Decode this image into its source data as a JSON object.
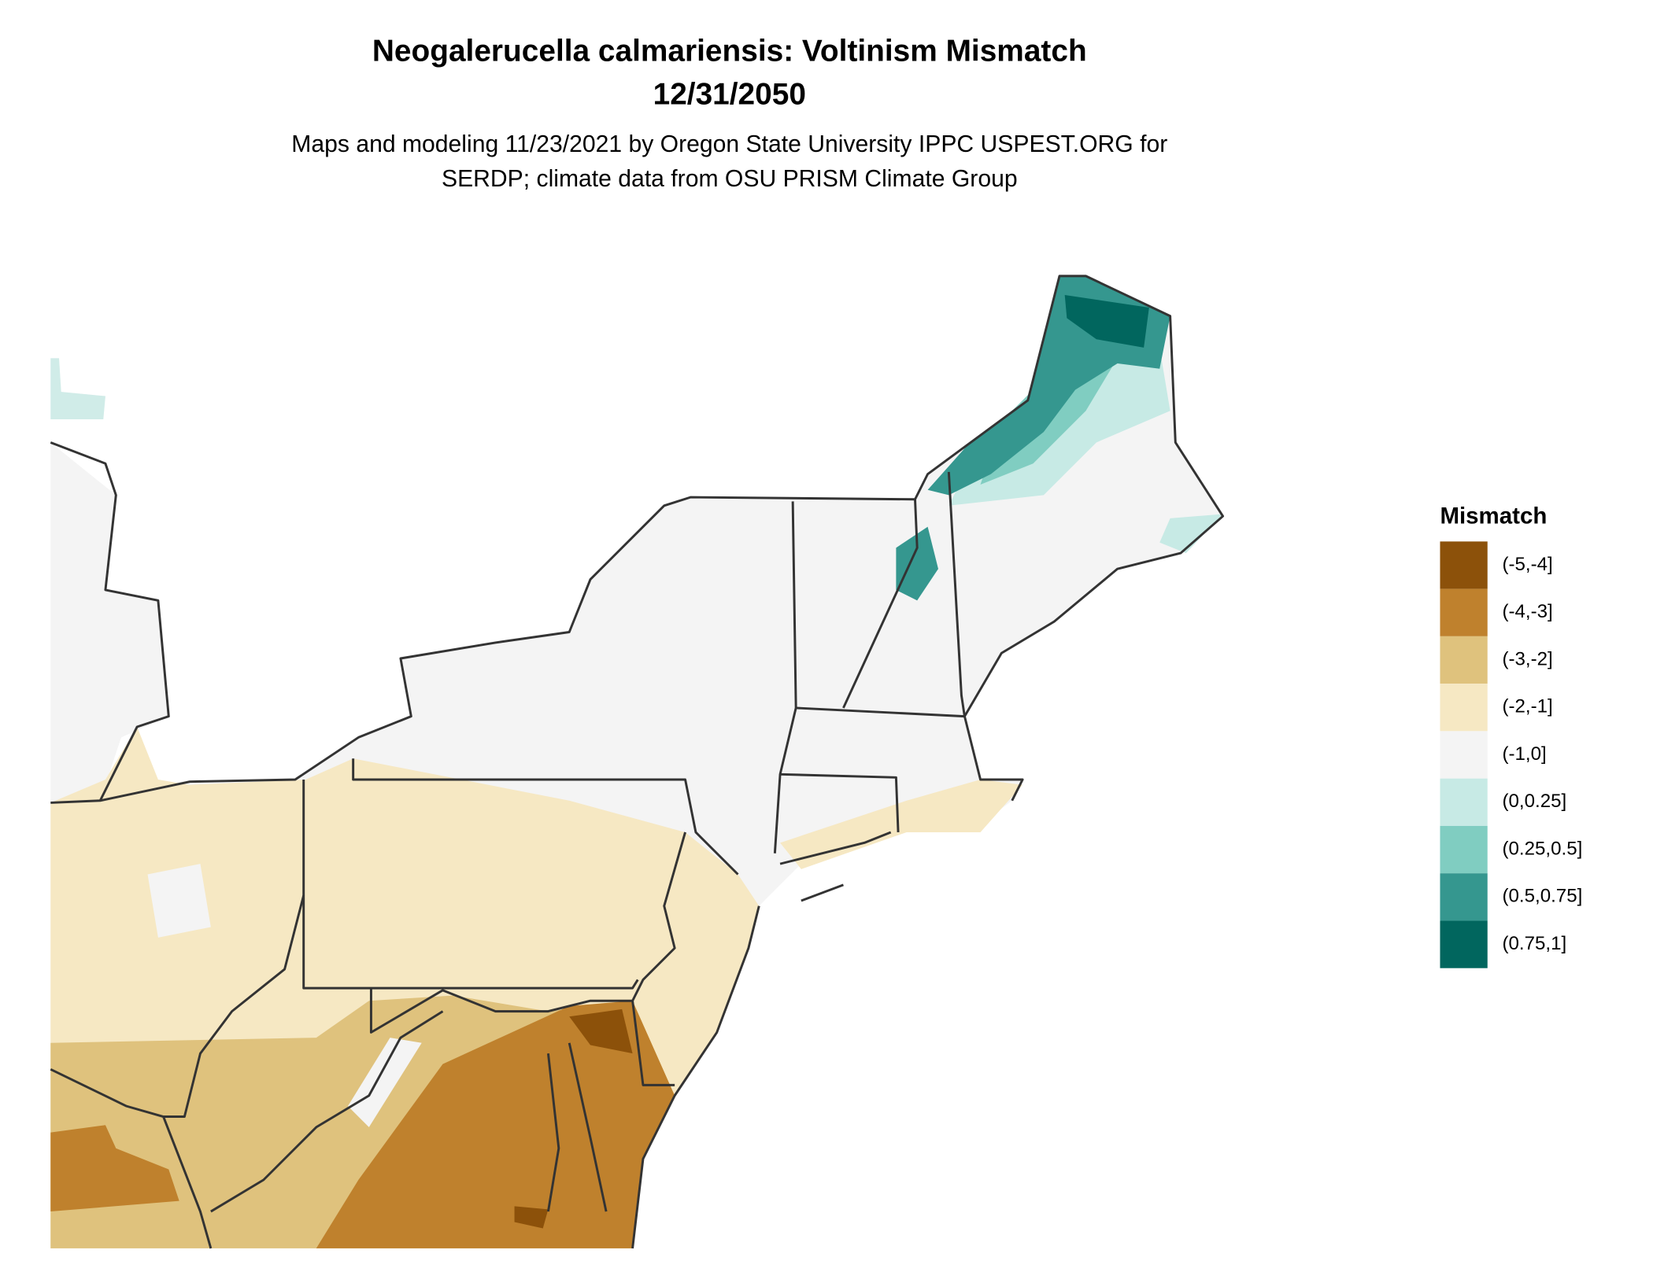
{
  "title": [
    "Neogalerucella calmariensis: Voltinism Mismatch",
    "12/31/2050"
  ],
  "subtitle": [
    "Maps and modeling 11/23/2021 by Oregon State University IPPC USPEST.ORG for",
    "SERDP; climate data from OSU PRISM Climate Group"
  ],
  "legend": {
    "title": "Mismatch",
    "items": [
      {
        "label": "(-5,-4]",
        "color": "#8c510a"
      },
      {
        "label": "(-4,-3]",
        "color": "#bf812d"
      },
      {
        "label": "(-3,-2]",
        "color": "#dfc27d"
      },
      {
        "label": "(-2,-1]",
        "color": "#f6e8c3"
      },
      {
        "label": "(-1,0]",
        "color": "#f4f4f4"
      },
      {
        "label": "(0,0.25]",
        "color": "#c7eae5"
      },
      {
        "label": "(0.25,0.5]",
        "color": "#80cdc1"
      },
      {
        "label": "(0.5,0.75]",
        "color": "#35978f"
      },
      {
        "label": "(0.75,1]",
        "color": "#01665e"
      }
    ]
  }
}
